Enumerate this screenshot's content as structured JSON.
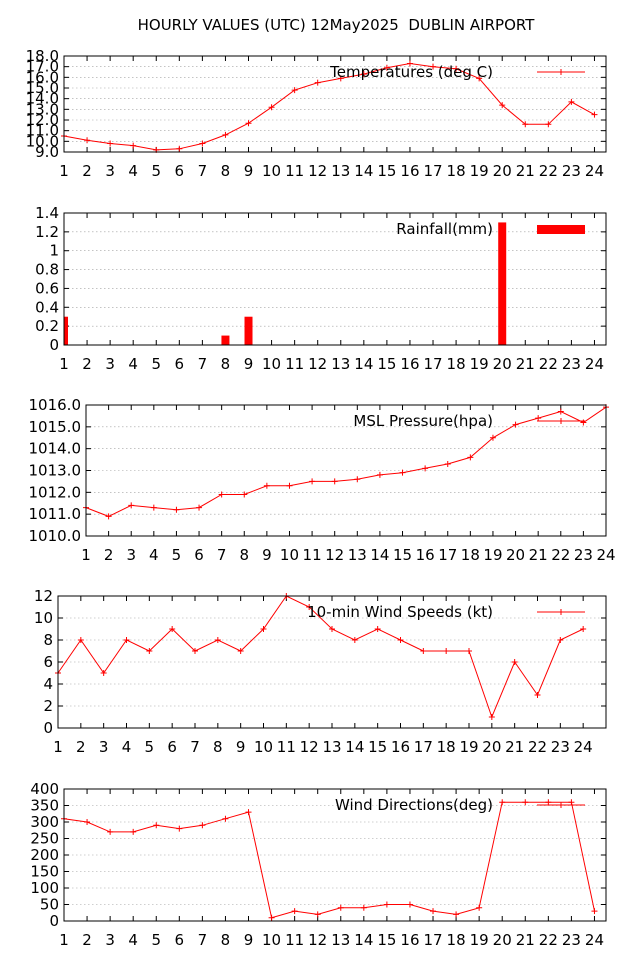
{
  "title": "HOURLY VALUES (UTC) 12May2025  DUBLIN AIRPORT",
  "colors": {
    "series": "#ff0000",
    "grid": "#a0a0a0",
    "axis": "#000000"
  },
  "chart_data": [
    {
      "type": "line",
      "legend": "Temperatures (deg C)",
      "legend_position": "top-right",
      "grid": true,
      "x": [
        1,
        2,
        3,
        4,
        5,
        6,
        7,
        8,
        9,
        10,
        11,
        12,
        13,
        14,
        15,
        16,
        17,
        18,
        19,
        20,
        21,
        22,
        23,
        24
      ],
      "values": [
        10.5,
        10.1,
        9.8,
        9.6,
        9.2,
        9.3,
        9.8,
        10.6,
        11.7,
        13.2,
        14.8,
        15.5,
        15.9,
        16.3,
        16.9,
        17.3,
        17.0,
        16.8,
        15.9,
        13.4,
        11.6,
        11.6,
        13.7,
        12.5
      ],
      "ylim": [
        9.0,
        18.0
      ],
      "yticks": [
        9,
        10,
        11,
        12,
        13,
        14,
        15,
        16,
        17,
        18
      ],
      "ytick_labels": [
        "9.0",
        "10.0",
        "11.0",
        "12.0",
        "13.0",
        "14.0",
        "15.0",
        "16.0",
        "17.0",
        "18.0"
      ],
      "xlim": [
        1,
        24.5
      ],
      "markers": true
    },
    {
      "type": "bar",
      "legend": "Rainfall(mm)",
      "legend_position": "top-right",
      "grid": true,
      "x": [
        1,
        2,
        3,
        4,
        5,
        6,
        7,
        8,
        9,
        10,
        11,
        12,
        13,
        14,
        15,
        16,
        17,
        18,
        19,
        20,
        21,
        22,
        23,
        24
      ],
      "values": [
        0.3,
        0,
        0,
        0,
        0,
        0,
        0,
        0.1,
        0.3,
        0,
        0,
        0,
        0,
        0,
        0,
        0,
        0,
        0,
        0,
        1.3,
        0,
        0,
        0,
        0
      ],
      "ylim": [
        0,
        1.4
      ],
      "yticks": [
        0,
        0.2,
        0.4,
        0.6,
        0.8,
        1,
        1.2,
        1.4
      ],
      "ytick_labels": [
        "0",
        "0.2",
        "0.4",
        "0.6",
        "0.8",
        "1",
        "1.2",
        "1.4"
      ],
      "xlim": [
        1,
        24.5
      ]
    },
    {
      "type": "line",
      "legend": "MSL Pressure(hpa)",
      "legend_position": "top-right",
      "grid": true,
      "x": [
        1,
        2,
        3,
        4,
        5,
        6,
        7,
        8,
        9,
        10,
        11,
        12,
        13,
        14,
        15,
        16,
        17,
        18,
        19,
        20,
        21,
        22,
        23,
        24
      ],
      "values": [
        1011.3,
        1010.9,
        1011.4,
        1011.3,
        1011.2,
        1011.3,
        1011.9,
        1011.9,
        1012.3,
        1012.3,
        1012.5,
        1012.5,
        1012.6,
        1012.8,
        1012.9,
        1013.1,
        1013.3,
        1013.6,
        1014.5,
        1015.1,
        1015.4,
        1015.7,
        1015.2,
        1015.9
      ],
      "ylim": [
        1010.0,
        1016.0
      ],
      "yticks": [
        1010,
        1011,
        1012,
        1013,
        1014,
        1015,
        1016
      ],
      "ytick_labels": [
        "1010.0",
        "1011.0",
        "1012.0",
        "1013.0",
        "1014.0",
        "1015.0",
        "1016.0"
      ],
      "xlim": [
        1,
        24
      ],
      "markers": true
    },
    {
      "type": "line",
      "legend": "10-min Wind Speeds (kt)",
      "legend_position": "top-right",
      "grid": true,
      "x": [
        1,
        2,
        3,
        4,
        5,
        6,
        7,
        8,
        9,
        10,
        11,
        12,
        13,
        14,
        15,
        16,
        17,
        18,
        19,
        20,
        21,
        22,
        23,
        24
      ],
      "values": [
        5,
        8,
        5,
        8,
        7,
        9,
        7,
        8,
        7,
        9,
        12,
        11,
        9,
        8,
        9,
        8,
        7,
        7,
        7,
        1,
        6,
        3,
        8,
        9
      ],
      "ylim": [
        0,
        12
      ],
      "yticks": [
        0,
        2,
        4,
        6,
        8,
        10,
        12
      ],
      "ytick_labels": [
        "0",
        "2",
        "4",
        "6",
        "8",
        "10",
        "12"
      ],
      "xlim": [
        1,
        25
      ],
      "markers": true
    },
    {
      "type": "line",
      "legend": "Wind Directions(deg)",
      "legend_position": "top-right",
      "grid": true,
      "x": [
        1,
        2,
        3,
        4,
        5,
        6,
        7,
        8,
        9,
        10,
        11,
        12,
        13,
        14,
        15,
        16,
        17,
        18,
        19,
        20,
        21,
        22,
        23,
        24
      ],
      "values": [
        310,
        300,
        270,
        270,
        290,
        280,
        290,
        310,
        330,
        10,
        30,
        20,
        40,
        40,
        50,
        50,
        30,
        20,
        40,
        360,
        360,
        360,
        360,
        30
      ],
      "ylim": [
        0,
        400
      ],
      "yticks": [
        0,
        50,
        100,
        150,
        200,
        250,
        300,
        350,
        400
      ],
      "ytick_labels": [
        "0",
        "50",
        "100",
        "150",
        "200",
        "250",
        "300",
        "350",
        "400"
      ],
      "xlim": [
        1,
        24.5
      ],
      "markers": true
    }
  ]
}
